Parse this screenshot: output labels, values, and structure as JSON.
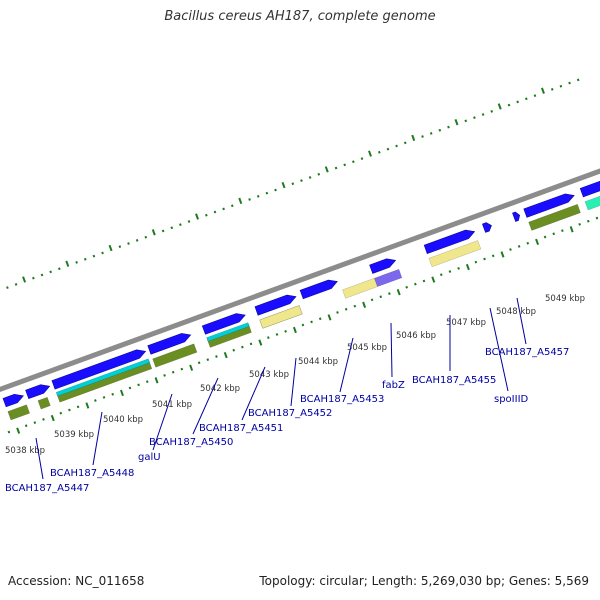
{
  "title": "Bacillus cereus AH187, complete genome",
  "footer": {
    "accession": "Accession: NC_011658",
    "summary": "Topology: circular; Length: 5,269,030 bp; Genes: 5,569"
  },
  "colors": {
    "backbone": "#8c8c8c",
    "cds": "#1a0dff",
    "gene_olive": "#6b8e23",
    "gene_cyan": "#00cfd8",
    "gene_khaki": "#f0e68c",
    "gene_slate": "#7b68ee",
    "gene_aqua": "#28f0b4",
    "ticks": "#1f7a1f",
    "labels": "#0000a0",
    "ruler_text": "#333333"
  },
  "ruler_labels": [
    "5038 kbp",
    "5039 kbp",
    "5040 kbp",
    "5041 kbp",
    "5042 kbp",
    "5043 kbp",
    "5044 kbp",
    "5045 kbp",
    "5046 kbp",
    "5047 kbp",
    "5048 kbp",
    "5049 kbp"
  ],
  "gene_labels": [
    "BCAH187_A5447",
    "BCAH187_A5448",
    "galU",
    "BCAH187_A5450",
    "BCAH187_A5451",
    "BCAH187_A5452",
    "BCAH187_A5453",
    "fabZ",
    "BCAH187_A5455",
    "spoIIID",
    "BCAH187_A5457"
  ]
}
